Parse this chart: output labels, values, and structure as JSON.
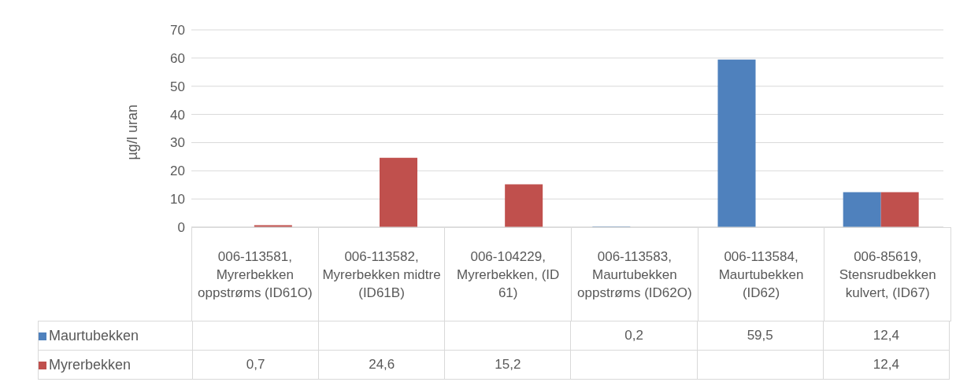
{
  "chart_data": {
    "type": "bar",
    "ylabel": "µg/l uran",
    "categories": [
      "006-113581, Myrerbekken oppstrøms (ID61O)",
      "006-113582, Myrerbekken midtre (ID61B)",
      "006-104229, Myrerbekken, (ID 61)",
      "006-113583, Maurtubekken oppstrøms (ID62O)",
      "006-113584, Maurtubekken (ID62)",
      "006-85619, Stensrudbekken kulvert, (ID67)"
    ],
    "series": [
      {
        "name": "Maurtubekken",
        "color": "#4f81bd",
        "values": [
          null,
          null,
          null,
          0.2,
          59.5,
          12.4
        ],
        "value_labels": [
          null,
          null,
          null,
          "0,2",
          "59,5",
          "12,4"
        ]
      },
      {
        "name": "Myrerbekken",
        "color": "#c0504d",
        "values": [
          0.7,
          24.6,
          15.2,
          null,
          null,
          12.4
        ],
        "value_labels": [
          "0,7",
          "24,6",
          "15,2",
          null,
          null,
          "12,4"
        ]
      }
    ],
    "ylim": [
      0,
      70
    ],
    "yticks": [
      0,
      10,
      20,
      30,
      40,
      50,
      60,
      70
    ],
    "grid": "y",
    "legend": "bottom"
  }
}
